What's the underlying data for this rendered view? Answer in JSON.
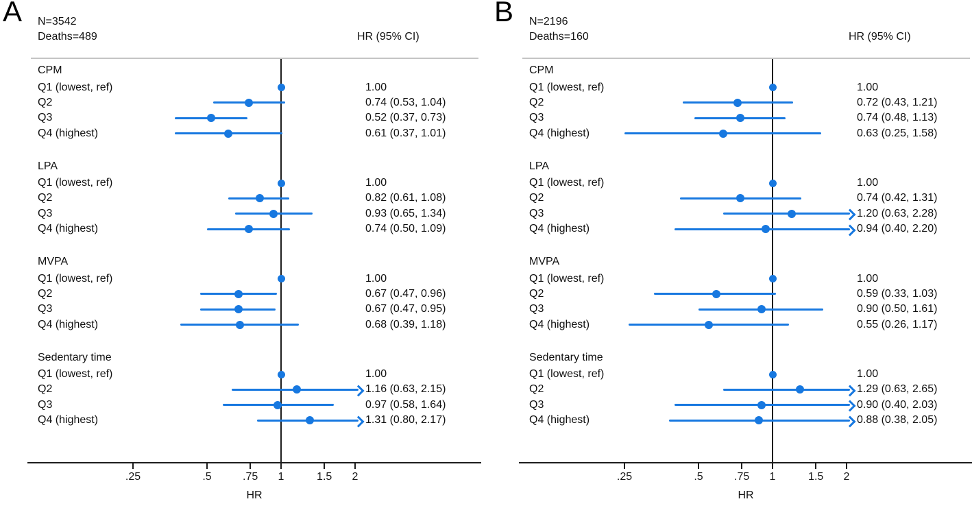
{
  "colors": {
    "marker_blue": "#1778e0",
    "line_dark": "#1d1d1d",
    "rule_gray": "#c4c4c4",
    "text": "#111111"
  },
  "axis": {
    "xlabel": "HR",
    "scale": "log",
    "refline": 1,
    "xlim_ticks": [
      0.25,
      2
    ],
    "ticks": [
      {
        "label": ".25",
        "value": 0.25
      },
      {
        "label": ".5",
        "value": 0.5
      },
      {
        "label": ".75",
        "value": 0.75
      },
      {
        "label": "1",
        "value": 1
      },
      {
        "label": "1.5",
        "value": 1.5
      },
      {
        "label": "2",
        "value": 2
      }
    ]
  },
  "chart_data": [
    {
      "type": "forest",
      "panel_letter": "A",
      "n_label": "N=3542",
      "deaths_label": "Deaths=489",
      "col_header": "HR (95% CI)",
      "groups": [
        {
          "name": "CPM",
          "rows": [
            {
              "label": "Q1 (lowest, ref)",
              "hr": 1.0,
              "lo": null,
              "hi": null,
              "text": "1.00",
              "ref": true,
              "arrow": false
            },
            {
              "label": "Q2",
              "hr": 0.74,
              "lo": 0.53,
              "hi": 1.04,
              "text": "0.74 (0.53, 1.04)",
              "ref": false,
              "arrow": false
            },
            {
              "label": "Q3",
              "hr": 0.52,
              "lo": 0.37,
              "hi": 0.73,
              "text": "0.52 (0.37, 0.73)",
              "ref": false,
              "arrow": false
            },
            {
              "label": "Q4 (highest)",
              "hr": 0.61,
              "lo": 0.37,
              "hi": 1.01,
              "text": "0.61 (0.37, 1.01)",
              "ref": false,
              "arrow": false
            }
          ]
        },
        {
          "name": "LPA",
          "rows": [
            {
              "label": "Q1 (lowest, ref)",
              "hr": 1.0,
              "lo": null,
              "hi": null,
              "text": "1.00",
              "ref": true,
              "arrow": false
            },
            {
              "label": "Q2",
              "hr": 0.82,
              "lo": 0.61,
              "hi": 1.08,
              "text": "0.82 (0.61, 1.08)",
              "ref": false,
              "arrow": false
            },
            {
              "label": "Q3",
              "hr": 0.93,
              "lo": 0.65,
              "hi": 1.34,
              "text": "0.93 (0.65, 1.34)",
              "ref": false,
              "arrow": false
            },
            {
              "label": "Q4 (highest)",
              "hr": 0.74,
              "lo": 0.5,
              "hi": 1.09,
              "text": "0.74 (0.50, 1.09)",
              "ref": false,
              "arrow": false
            }
          ]
        },
        {
          "name": "MVPA",
          "rows": [
            {
              "label": "Q1 (lowest, ref)",
              "hr": 1.0,
              "lo": null,
              "hi": null,
              "text": "1.00",
              "ref": true,
              "arrow": false
            },
            {
              "label": "Q2",
              "hr": 0.67,
              "lo": 0.47,
              "hi": 0.96,
              "text": "0.67 (0.47, 0.96)",
              "ref": false,
              "arrow": false
            },
            {
              "label": "Q3",
              "hr": 0.67,
              "lo": 0.47,
              "hi": 0.95,
              "text": "0.67 (0.47, 0.95)",
              "ref": false,
              "arrow": false
            },
            {
              "label": "Q4 (highest)",
              "hr": 0.68,
              "lo": 0.39,
              "hi": 1.18,
              "text": "0.68 (0.39, 1.18)",
              "ref": false,
              "arrow": false
            }
          ]
        },
        {
          "name": "Sedentary time",
          "rows": [
            {
              "label": "Q1 (lowest, ref)",
              "hr": 1.0,
              "lo": null,
              "hi": null,
              "text": "1.00",
              "ref": true,
              "arrow": false
            },
            {
              "label": "Q2",
              "hr": 1.16,
              "lo": 0.63,
              "hi": 2.15,
              "text": "1.16 (0.63, 2.15)",
              "ref": false,
              "arrow": true
            },
            {
              "label": "Q3",
              "hr": 0.97,
              "lo": 0.58,
              "hi": 1.64,
              "text": "0.97 (0.58, 1.64)",
              "ref": false,
              "arrow": false
            },
            {
              "label": "Q4 (highest)",
              "hr": 1.31,
              "lo": 0.8,
              "hi": 2.17,
              "text": "1.31 (0.80, 2.17)",
              "ref": false,
              "arrow": true
            }
          ]
        }
      ]
    },
    {
      "type": "forest",
      "panel_letter": "B",
      "n_label": "N=2196",
      "deaths_label": "Deaths=160",
      "col_header": "HR (95% CI)",
      "groups": [
        {
          "name": "CPM",
          "rows": [
            {
              "label": "Q1 (lowest, ref)",
              "hr": 1.0,
              "lo": null,
              "hi": null,
              "text": "1.00",
              "ref": true,
              "arrow": false
            },
            {
              "label": "Q2",
              "hr": 0.72,
              "lo": 0.43,
              "hi": 1.21,
              "text": "0.72 (0.43, 1.21)",
              "ref": false,
              "arrow": false
            },
            {
              "label": "Q3",
              "hr": 0.74,
              "lo": 0.48,
              "hi": 1.13,
              "text": "0.74 (0.48, 1.13)",
              "ref": false,
              "arrow": false
            },
            {
              "label": "Q4 (highest)",
              "hr": 0.63,
              "lo": 0.25,
              "hi": 1.58,
              "text": "0.63 (0.25, 1.58)",
              "ref": false,
              "arrow": false
            }
          ]
        },
        {
          "name": "LPA",
          "rows": [
            {
              "label": "Q1 (lowest, ref)",
              "hr": 1.0,
              "lo": null,
              "hi": null,
              "text": "1.00",
              "ref": true,
              "arrow": false
            },
            {
              "label": "Q2",
              "hr": 0.74,
              "lo": 0.42,
              "hi": 1.31,
              "text": "0.74 (0.42, 1.31)",
              "ref": false,
              "arrow": false
            },
            {
              "label": "Q3",
              "hr": 1.2,
              "lo": 0.63,
              "hi": 2.28,
              "text": "1.20 (0.63, 2.28)",
              "ref": false,
              "arrow": true
            },
            {
              "label": "Q4 (highest)",
              "hr": 0.94,
              "lo": 0.4,
              "hi": 2.2,
              "text": "0.94 (0.40, 2.20)",
              "ref": false,
              "arrow": true
            }
          ]
        },
        {
          "name": "MVPA",
          "rows": [
            {
              "label": "Q1 (lowest, ref)",
              "hr": 1.0,
              "lo": null,
              "hi": null,
              "text": "1.00",
              "ref": true,
              "arrow": false
            },
            {
              "label": "Q2",
              "hr": 0.59,
              "lo": 0.33,
              "hi": 1.03,
              "text": "0.59 (0.33, 1.03)",
              "ref": false,
              "arrow": false
            },
            {
              "label": "Q3",
              "hr": 0.9,
              "lo": 0.5,
              "hi": 1.61,
              "text": "0.90 (0.50, 1.61)",
              "ref": false,
              "arrow": false
            },
            {
              "label": "Q4 (highest)",
              "hr": 0.55,
              "lo": 0.26,
              "hi": 1.17,
              "text": "0.55 (0.26, 1.17)",
              "ref": false,
              "arrow": false
            }
          ]
        },
        {
          "name": "Sedentary time",
          "rows": [
            {
              "label": "Q1 (lowest, ref)",
              "hr": 1.0,
              "lo": null,
              "hi": null,
              "text": "1.00",
              "ref": true,
              "arrow": false
            },
            {
              "label": "Q2",
              "hr": 1.29,
              "lo": 0.63,
              "hi": 2.65,
              "text": "1.29 (0.63, 2.65)",
              "ref": false,
              "arrow": true
            },
            {
              "label": "Q3",
              "hr": 0.9,
              "lo": 0.4,
              "hi": 2.03,
              "text": "0.90 (0.40, 2.03)",
              "ref": false,
              "arrow": true
            },
            {
              "label": "Q4 (highest)",
              "hr": 0.88,
              "lo": 0.38,
              "hi": 2.05,
              "text": "0.88 (0.38, 2.05)",
              "ref": false,
              "arrow": true
            }
          ]
        }
      ]
    }
  ]
}
